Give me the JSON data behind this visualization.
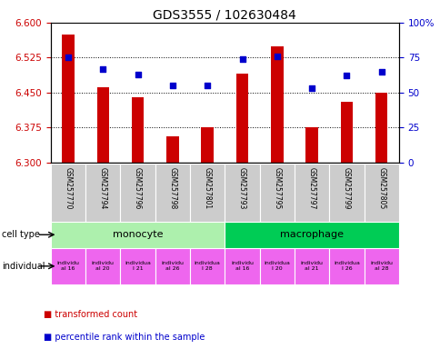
{
  "title": "GDS3555 / 102630484",
  "samples": [
    "GSM257770",
    "GSM257794",
    "GSM257796",
    "GSM257798",
    "GSM257801",
    "GSM257793",
    "GSM257795",
    "GSM257797",
    "GSM257799",
    "GSM257805"
  ],
  "bar_values": [
    6.575,
    6.462,
    6.44,
    6.355,
    6.375,
    6.49,
    6.55,
    6.375,
    6.43,
    6.45
  ],
  "scatter_values": [
    75,
    67,
    63,
    55,
    55,
    74,
    76,
    53,
    62,
    65
  ],
  "ylim": [
    6.3,
    6.6
  ],
  "y2lim": [
    0,
    100
  ],
  "yticks": [
    6.3,
    6.375,
    6.45,
    6.525,
    6.6
  ],
  "y2ticks": [
    0,
    25,
    50,
    75,
    100
  ],
  "y2ticklabels": [
    "0",
    "25",
    "50",
    "75",
    "100%"
  ],
  "bar_color": "#cc0000",
  "scatter_color": "#0000cc",
  "cell_types": [
    {
      "label": "monocyte",
      "start": 0,
      "end": 5,
      "color": "#adf0ad"
    },
    {
      "label": "macrophage",
      "start": 5,
      "end": 10,
      "color": "#00cc55"
    }
  ],
  "ind_labels": [
    "individu\nal 16",
    "individu\nal 20",
    "individua\nl 21",
    "individu\nal 26",
    "individua\nl 28",
    "individu\nal 16",
    "individua\nl 20",
    "individu\nal 21",
    "individua\nl 26",
    "individu\nal 28"
  ],
  "ind_color": "#ee66ee",
  "sample_bg": "#cccccc",
  "bg_color": "#ffffff",
  "label_color_left": "#cc0000",
  "label_color_right": "#0000cc",
  "dotted_lines": [
    6.525,
    6.45,
    6.375
  ],
  "legend_items": [
    {
      "label": "transformed count",
      "color": "#cc0000"
    },
    {
      "label": "percentile rank within the sample",
      "color": "#0000cc"
    }
  ]
}
